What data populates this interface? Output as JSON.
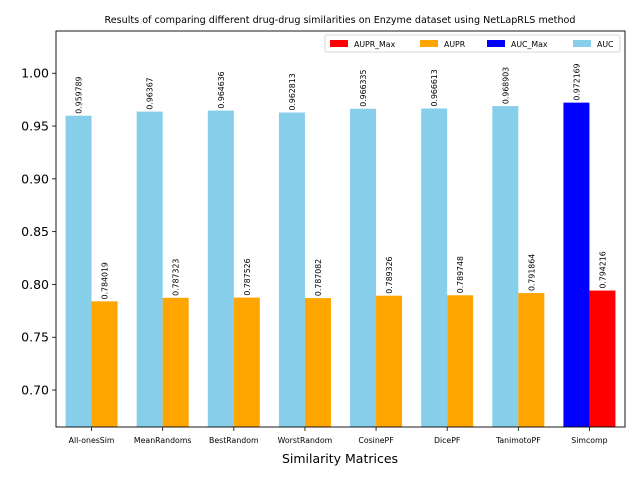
{
  "chart_data": {
    "type": "bar",
    "title": "Results of comparing different drug-drug similarities on Enzyme dataset using NetLapRLS method",
    "xlabel": "Similarity Matrices",
    "ylabel": "",
    "ylim": [
      0.665,
      1.04
    ],
    "yticks": [
      "0.70",
      "0.75",
      "0.80",
      "0.85",
      "0.90",
      "0.95",
      "1.00"
    ],
    "grid": false,
    "legend_position": "top-right",
    "categories": [
      "All-onesSim",
      "MeanRandoms",
      "BestRandom",
      "WorstRandom",
      "CosinePF",
      "DicePF",
      "TanimotoPF",
      "Simcomp"
    ],
    "series": [
      {
        "name": "AUC",
        "values": [
          0.959789,
          0.96367,
          0.964636,
          0.962813,
          0.966335,
          0.966613,
          0.968903,
          0.972169
        ],
        "labels": [
          "0.959789",
          "0.96367",
          "0.964636",
          "0.962813",
          "0.966335",
          "0.966613",
          "0.968903",
          "0.972169"
        ]
      },
      {
        "name": "AUPR",
        "values": [
          0.784019,
          0.787323,
          0.787526,
          0.787082,
          0.789326,
          0.789748,
          0.791864,
          0.794216
        ],
        "labels": [
          "0.784019",
          "0.787323",
          "0.787526",
          "0.787082",
          "0.789326",
          "0.789748",
          "0.791864",
          "0.794216"
        ]
      }
    ],
    "highlight_category": "Simcomp",
    "legend": [
      "AUPR_Max",
      "AUPR",
      "AUC_Max",
      "AUC"
    ],
    "colors": {
      "AUC": "#87ceeb",
      "AUPR": "#ffa500",
      "AUC_Max": "#0000ff",
      "AUPR_Max": "#ff0000"
    }
  }
}
